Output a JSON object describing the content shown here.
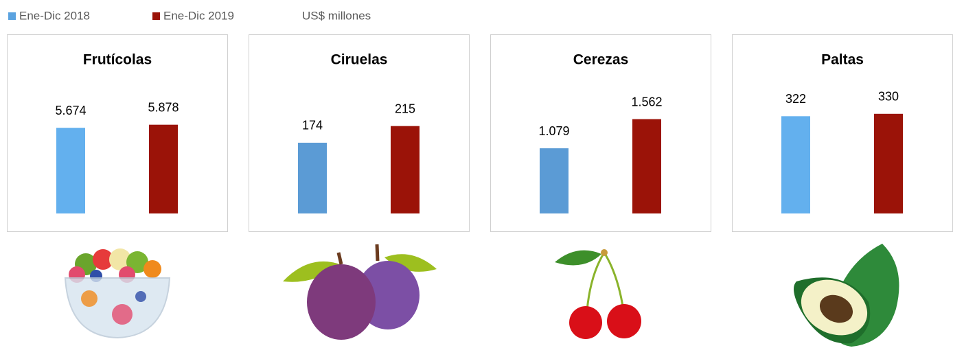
{
  "legend": {
    "items": [
      {
        "name": "Ene-Dic 2018",
        "color": "#5ba3e0"
      },
      {
        "name": "Ene-Dic 2019",
        "color": "#9b1308"
      }
    ],
    "unit": "US$ millones"
  },
  "chart_data": [
    {
      "type": "bar",
      "title": "Frutícolas",
      "ylim": [
        0,
        7000
      ],
      "series": [
        {
          "color": "#63b0ee",
          "values": [
            5674
          ],
          "value_labels": [
            "5.674"
          ]
        },
        {
          "color": "#9b1308",
          "values": [
            5878
          ],
          "value_labels": [
            "5.878"
          ]
        }
      ]
    },
    {
      "type": "bar",
      "title": "Ciruelas",
      "ylim": [
        0,
        260
      ],
      "series": [
        {
          "color": "#5b9bd5",
          "values": [
            174
          ]
        },
        {
          "color": "#9b1308",
          "values": [
            215
          ]
        }
      ]
    },
    {
      "type": "bar",
      "title": "Cerezas",
      "ylim": [
        0,
        1750
      ],
      "series": [
        {
          "color": "#5b9bd5",
          "values": [
            1079
          ],
          "value_labels": [
            "1.079"
          ]
        },
        {
          "color": "#9b1308",
          "values": [
            1562
          ],
          "value_labels": [
            "1.562"
          ]
        }
      ]
    },
    {
      "type": "bar",
      "title": "Paltas",
      "ylim": [
        0,
        350
      ],
      "series": [
        {
          "color": "#63b0ee",
          "values": [
            322
          ]
        },
        {
          "color": "#9b1308",
          "values": [
            330
          ]
        }
      ]
    }
  ]
}
